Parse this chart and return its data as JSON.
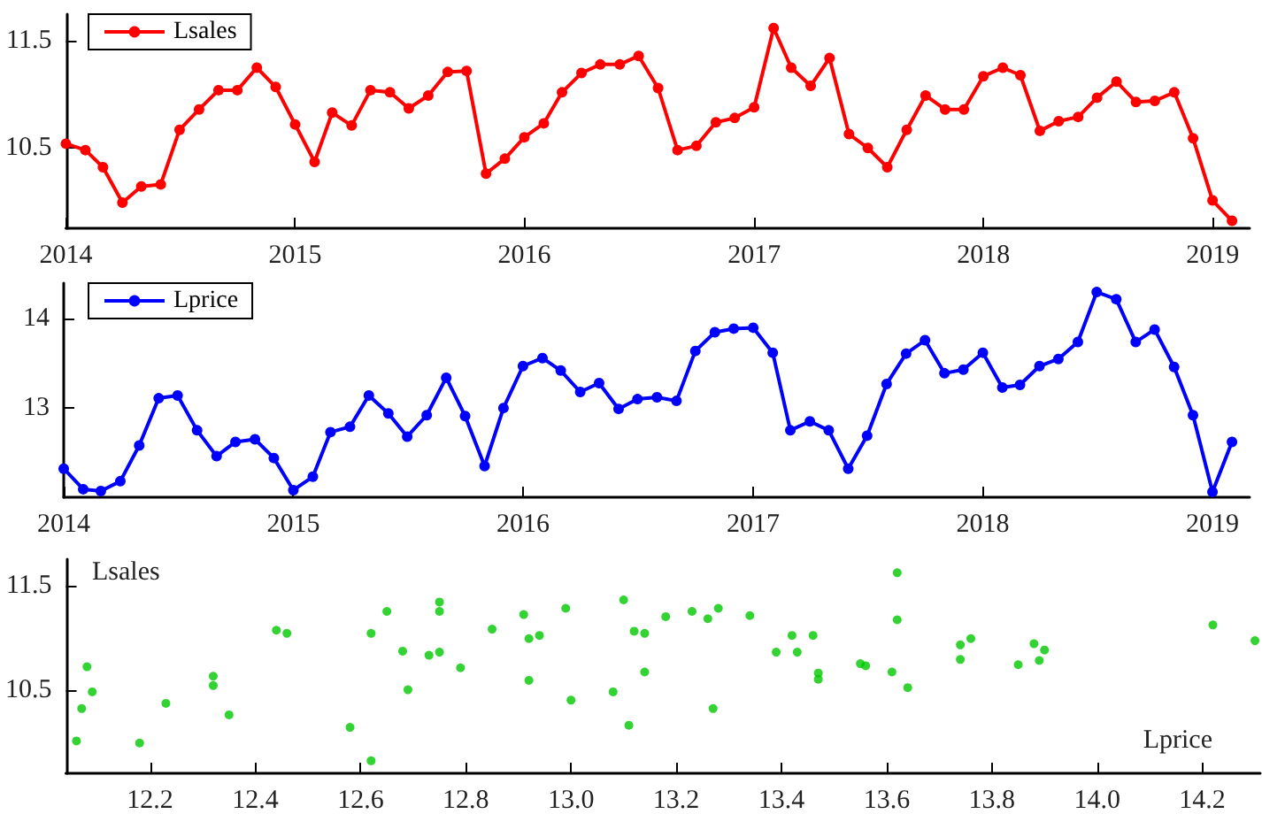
{
  "chart_data": [
    {
      "type": "line",
      "x": [
        "2014-01",
        "2014-02",
        "2014-03",
        "2014-04",
        "2014-05",
        "2014-06",
        "2014-07",
        "2014-08",
        "2014-09",
        "2014-10",
        "2014-11",
        "2014-12",
        "2015-01",
        "2015-02",
        "2015-03",
        "2015-04",
        "2015-05",
        "2015-06",
        "2015-07",
        "2015-08",
        "2015-09",
        "2015-10",
        "2015-11",
        "2015-12",
        "2016-01",
        "2016-02",
        "2016-03",
        "2016-04",
        "2016-05",
        "2016-06",
        "2016-07",
        "2016-08",
        "2016-09",
        "2016-10",
        "2016-11",
        "2016-12",
        "2017-01",
        "2017-02",
        "2017-03",
        "2017-04",
        "2017-05",
        "2017-06",
        "2017-07",
        "2017-08",
        "2017-09",
        "2017-10",
        "2017-11",
        "2017-12",
        "2018-01",
        "2018-02",
        "2018-03",
        "2018-04",
        "2018-05",
        "2018-06",
        "2018-07",
        "2018-08",
        "2018-09",
        "2018-10",
        "2018-11",
        "2018-12",
        "2019-01",
        "2019-02"
      ],
      "series": [
        {
          "name": "Lsales",
          "color": "#ff0000",
          "values": [
            10.54,
            10.48,
            10.32,
            9.99,
            10.14,
            10.16,
            10.67,
            10.86,
            11.04,
            11.04,
            11.25,
            11.07,
            10.72,
            10.37,
            10.83,
            10.71,
            11.04,
            11.02,
            10.87,
            10.99,
            11.21,
            11.22,
            10.26,
            10.4,
            10.6,
            10.73,
            11.02,
            11.2,
            11.28,
            11.28,
            11.36,
            11.06,
            10.48,
            10.52,
            10.74,
            10.78,
            10.88,
            11.62,
            11.25,
            11.08,
            11.34,
            10.63,
            10.5,
            10.32,
            10.67,
            10.99,
            10.86,
            10.86,
            11.17,
            11.25,
            11.18,
            10.66,
            10.75,
            10.79,
            10.97,
            11.12,
            10.93,
            10.94,
            11.02,
            10.59,
            10.01,
            9.82
          ]
        }
      ],
      "xlim": [
        "2014-01",
        "2019-03"
      ],
      "xticks": [
        "2014",
        "2015",
        "2016",
        "2017",
        "2018",
        "2019"
      ],
      "ylim": [
        9.75,
        11.75
      ],
      "yticks": [
        10.5,
        11.5
      ],
      "legend": "top left",
      "marker": "circle"
    },
    {
      "type": "line",
      "x": [
        "2014-01",
        "2014-02",
        "2014-03",
        "2014-04",
        "2014-05",
        "2014-06",
        "2014-07",
        "2014-08",
        "2014-09",
        "2014-10",
        "2014-11",
        "2014-12",
        "2015-01",
        "2015-02",
        "2015-03",
        "2015-04",
        "2015-05",
        "2015-06",
        "2015-07",
        "2015-08",
        "2015-09",
        "2015-10",
        "2015-11",
        "2015-12",
        "2016-01",
        "2016-02",
        "2016-03",
        "2016-04",
        "2016-05",
        "2016-06",
        "2016-07",
        "2016-08",
        "2016-09",
        "2016-10",
        "2016-11",
        "2016-12",
        "2017-01",
        "2017-02",
        "2017-03",
        "2017-04",
        "2017-05",
        "2017-06",
        "2017-07",
        "2017-08",
        "2017-09",
        "2017-10",
        "2017-11",
        "2017-12",
        "2018-01",
        "2018-02",
        "2018-03",
        "2018-04",
        "2018-05",
        "2018-06",
        "2018-07",
        "2018-08",
        "2018-09",
        "2018-10",
        "2018-11",
        "2018-12",
        "2019-01",
        "2019-02"
      ],
      "series": [
        {
          "name": "Lprice",
          "color": "#0000ff",
          "values": [
            12.32,
            12.09,
            12.07,
            12.18,
            12.58,
            13.11,
            13.14,
            12.75,
            12.46,
            12.62,
            12.65,
            12.44,
            12.08,
            12.23,
            12.73,
            12.79,
            13.14,
            12.94,
            12.68,
            12.92,
            13.34,
            12.91,
            12.35,
            13.0,
            13.47,
            13.56,
            13.42,
            13.18,
            13.28,
            12.99,
            13.1,
            13.12,
            13.08,
            13.64,
            13.85,
            13.89,
            13.9,
            13.62,
            12.75,
            12.85,
            12.75,
            12.32,
            12.69,
            13.27,
            13.61,
            13.76,
            13.39,
            13.43,
            13.62,
            13.23,
            13.26,
            13.47,
            13.55,
            13.74,
            14.3,
            14.22,
            13.74,
            13.88,
            13.46,
            12.92,
            12.06,
            12.62
          ]
        }
      ],
      "xlim": [
        "2014-01",
        "2019-03"
      ],
      "xticks": [
        "2014",
        "2015",
        "2016",
        "2017",
        "2018",
        "2019"
      ],
      "ylim": [
        12.0,
        14.4
      ],
      "yticks": [
        13,
        14
      ],
      "legend": "top left",
      "marker": "circle"
    },
    {
      "type": "scatter",
      "xlabel": "Lprice",
      "ylabel": "Lsales",
      "x": [
        12.32,
        12.09,
        12.07,
        12.18,
        12.58,
        13.11,
        13.14,
        12.75,
        12.46,
        12.62,
        12.65,
        12.44,
        12.08,
        12.23,
        12.73,
        12.79,
        13.14,
        12.94,
        12.68,
        12.92,
        13.34,
        12.91,
        12.35,
        13.0,
        13.47,
        13.56,
        13.42,
        13.18,
        13.28,
        12.99,
        13.1,
        13.12,
        13.08,
        13.64,
        13.85,
        13.89,
        13.9,
        13.62,
        12.75,
        12.85,
        12.75,
        12.32,
        12.69,
        13.27,
        13.61,
        13.76,
        13.39,
        13.43,
        13.62,
        13.23,
        13.26,
        13.47,
        13.55,
        13.74,
        14.3,
        14.22,
        13.74,
        13.88,
        13.46,
        12.92,
        12.06,
        12.62
      ],
      "series": [
        {
          "color": "#00c800",
          "values": [
            10.54,
            10.48,
            10.32,
            9.99,
            10.14,
            10.16,
            10.67,
            10.86,
            11.04,
            11.04,
            11.25,
            11.07,
            10.72,
            10.37,
            10.83,
            10.71,
            11.04,
            11.02,
            10.87,
            10.99,
            11.21,
            11.22,
            10.26,
            10.4,
            10.6,
            10.73,
            11.02,
            11.2,
            11.28,
            11.28,
            11.36,
            11.06,
            10.48,
            10.52,
            10.74,
            10.78,
            10.88,
            11.62,
            11.25,
            11.08,
            11.34,
            10.63,
            10.5,
            10.32,
            10.67,
            10.99,
            10.86,
            10.86,
            11.17,
            11.25,
            11.18,
            10.66,
            10.75,
            10.79,
            10.97,
            11.12,
            10.93,
            10.94,
            11.02,
            10.59,
            10.01,
            9.82
          ]
        }
      ],
      "xlim": [
        12.04,
        14.31
      ],
      "xticks": [
        12.2,
        12.4,
        12.6,
        12.8,
        {
          "value": 13,
          "label": "13.0"
        },
        13.2,
        13.4,
        13.6,
        13.8,
        {
          "value": 14,
          "label": "14.0"
        },
        14.2
      ],
      "ylim": [
        9.7,
        11.75
      ],
      "yticks": [
        10.5,
        11.5
      ],
      "marker": "circle"
    }
  ]
}
